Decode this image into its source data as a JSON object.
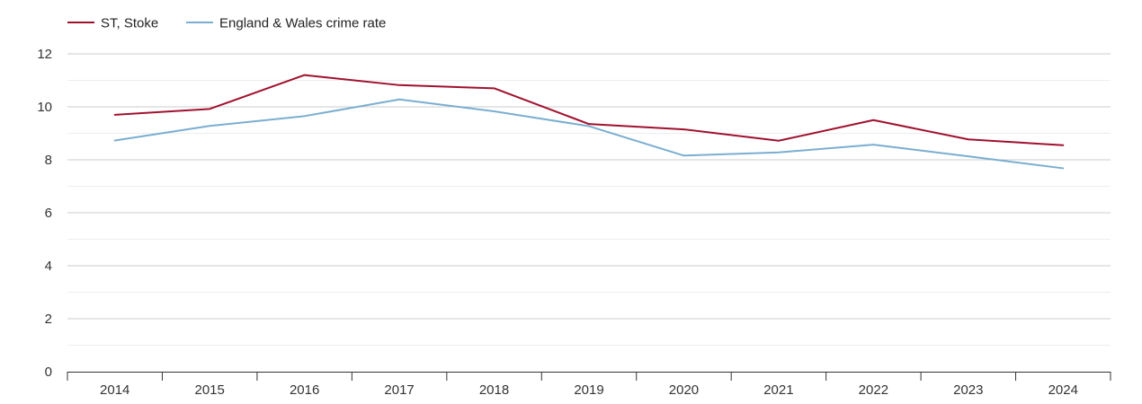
{
  "chart_data": {
    "type": "line",
    "title": "",
    "xlabel": "",
    "ylabel": "",
    "ylim": [
      0,
      12
    ],
    "yticks": [
      0,
      2,
      4,
      6,
      8,
      10,
      12
    ],
    "grid": true,
    "legend_position": "top-left",
    "categories": [
      "2014",
      "2015",
      "2016",
      "2017",
      "2018",
      "2019",
      "2020",
      "2021",
      "2022",
      "2023",
      "2024"
    ],
    "series": [
      {
        "name": "ST, Stoke",
        "color": "#a0112e",
        "values": [
          9.7,
          9.92,
          11.2,
          10.82,
          10.7,
          9.35,
          9.15,
          8.72,
          9.5,
          8.77,
          8.55
        ]
      },
      {
        "name": "England & Wales crime rate",
        "color": "#7aaed0",
        "values": [
          8.73,
          9.28,
          9.65,
          10.28,
          9.83,
          9.27,
          8.16,
          8.28,
          8.57,
          8.13,
          7.68
        ]
      }
    ]
  }
}
